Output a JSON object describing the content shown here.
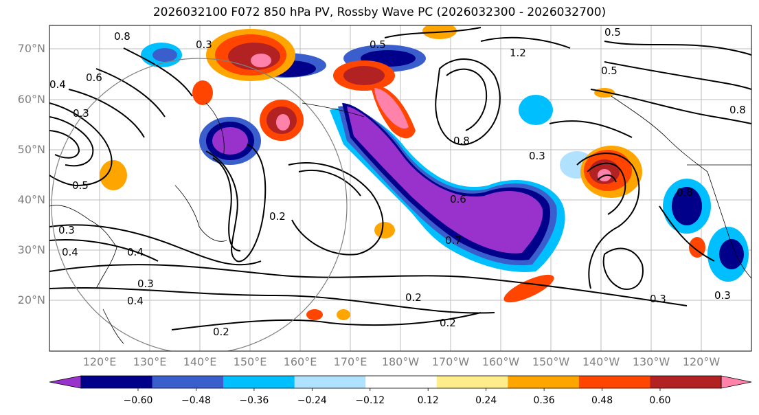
{
  "title": "2026032100 F072 850 hPa PV, Rossby Wave PC (2026032300 - 2026032700)",
  "lat_labels": [
    "70°N",
    "60°N",
    "50°N",
    "40°N",
    "30°N",
    "20°N"
  ],
  "lon_labels": [
    "120°E",
    "130°E",
    "140°E",
    "150°E",
    "160°E",
    "170°E",
    "180°W",
    "170°W",
    "160°W",
    "150°W",
    "140°W",
    "130°W",
    "120°W"
  ],
  "colorbar": {
    "colors": [
      "#9932CC",
      "#00008B",
      "#3A5FCD",
      "#00BFFF",
      "#B0E2FF",
      "#FFFFFF",
      "#FFEC8B",
      "#FFA500",
      "#FF4500",
      "#B22222",
      "#FF82AB"
    ],
    "tick_labels": [
      "−0.60",
      "−0.48",
      "−0.36",
      "−0.24",
      "−0.12",
      "0.12",
      "0.24",
      "0.36",
      "0.48",
      "0.60"
    ],
    "tick_values": [
      -0.6,
      -0.48,
      -0.36,
      -0.24,
      -0.12,
      0.12,
      0.24,
      0.36,
      0.48,
      0.6
    ]
  },
  "contour_labels": [
    "0.8",
    "0.3",
    "0.5",
    "0.4",
    "0.6",
    "0.3",
    "0.7",
    "0.2",
    "0.5",
    "0.8",
    "1.2",
    "0.5",
    "0.3",
    "0.4",
    "0.3",
    "0.4",
    "0.2",
    "0.2",
    "0.3",
    "0.4",
    "0.3",
    "0.5",
    "0.8",
    "0.6",
    "0.8",
    "0.3",
    "0.2"
  ]
}
